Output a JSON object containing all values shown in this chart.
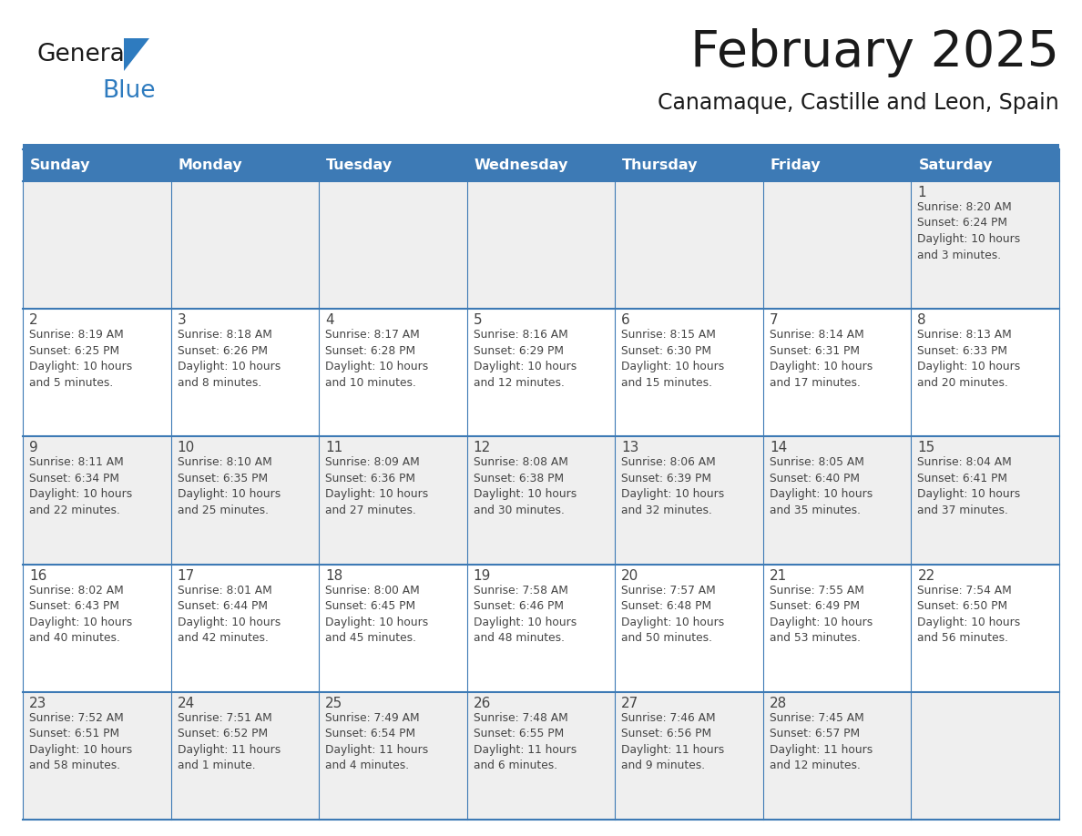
{
  "title": "February 2025",
  "subtitle": "Canamaque, Castille and Leon, Spain",
  "header_bg_color": "#3d7ab5",
  "header_text_color": "#ffffff",
  "cell_bg_color_odd": "#efefef",
  "cell_bg_color_even": "#ffffff",
  "separator_color": "#3d7ab5",
  "day_headers": [
    "Sunday",
    "Monday",
    "Tuesday",
    "Wednesday",
    "Thursday",
    "Friday",
    "Saturday"
  ],
  "days": [
    {
      "day": 1,
      "col": 6,
      "row": 0,
      "sunrise": "8:20 AM",
      "sunset": "6:24 PM",
      "daylight": "10 hours and 3 minutes."
    },
    {
      "day": 2,
      "col": 0,
      "row": 1,
      "sunrise": "8:19 AM",
      "sunset": "6:25 PM",
      "daylight": "10 hours and 5 minutes."
    },
    {
      "day": 3,
      "col": 1,
      "row": 1,
      "sunrise": "8:18 AM",
      "sunset": "6:26 PM",
      "daylight": "10 hours and 8 minutes."
    },
    {
      "day": 4,
      "col": 2,
      "row": 1,
      "sunrise": "8:17 AM",
      "sunset": "6:28 PM",
      "daylight": "10 hours and 10 minutes."
    },
    {
      "day": 5,
      "col": 3,
      "row": 1,
      "sunrise": "8:16 AM",
      "sunset": "6:29 PM",
      "daylight": "10 hours and 12 minutes."
    },
    {
      "day": 6,
      "col": 4,
      "row": 1,
      "sunrise": "8:15 AM",
      "sunset": "6:30 PM",
      "daylight": "10 hours and 15 minutes."
    },
    {
      "day": 7,
      "col": 5,
      "row": 1,
      "sunrise": "8:14 AM",
      "sunset": "6:31 PM",
      "daylight": "10 hours and 17 minutes."
    },
    {
      "day": 8,
      "col": 6,
      "row": 1,
      "sunrise": "8:13 AM",
      "sunset": "6:33 PM",
      "daylight": "10 hours and 20 minutes."
    },
    {
      "day": 9,
      "col": 0,
      "row": 2,
      "sunrise": "8:11 AM",
      "sunset": "6:34 PM",
      "daylight": "10 hours and 22 minutes."
    },
    {
      "day": 10,
      "col": 1,
      "row": 2,
      "sunrise": "8:10 AM",
      "sunset": "6:35 PM",
      "daylight": "10 hours and 25 minutes."
    },
    {
      "day": 11,
      "col": 2,
      "row": 2,
      "sunrise": "8:09 AM",
      "sunset": "6:36 PM",
      "daylight": "10 hours and 27 minutes."
    },
    {
      "day": 12,
      "col": 3,
      "row": 2,
      "sunrise": "8:08 AM",
      "sunset": "6:38 PM",
      "daylight": "10 hours and 30 minutes."
    },
    {
      "day": 13,
      "col": 4,
      "row": 2,
      "sunrise": "8:06 AM",
      "sunset": "6:39 PM",
      "daylight": "10 hours and 32 minutes."
    },
    {
      "day": 14,
      "col": 5,
      "row": 2,
      "sunrise": "8:05 AM",
      "sunset": "6:40 PM",
      "daylight": "10 hours and 35 minutes."
    },
    {
      "day": 15,
      "col": 6,
      "row": 2,
      "sunrise": "8:04 AM",
      "sunset": "6:41 PM",
      "daylight": "10 hours and 37 minutes."
    },
    {
      "day": 16,
      "col": 0,
      "row": 3,
      "sunrise": "8:02 AM",
      "sunset": "6:43 PM",
      "daylight": "10 hours and 40 minutes."
    },
    {
      "day": 17,
      "col": 1,
      "row": 3,
      "sunrise": "8:01 AM",
      "sunset": "6:44 PM",
      "daylight": "10 hours and 42 minutes."
    },
    {
      "day": 18,
      "col": 2,
      "row": 3,
      "sunrise": "8:00 AM",
      "sunset": "6:45 PM",
      "daylight": "10 hours and 45 minutes."
    },
    {
      "day": 19,
      "col": 3,
      "row": 3,
      "sunrise": "7:58 AM",
      "sunset": "6:46 PM",
      "daylight": "10 hours and 48 minutes."
    },
    {
      "day": 20,
      "col": 4,
      "row": 3,
      "sunrise": "7:57 AM",
      "sunset": "6:48 PM",
      "daylight": "10 hours and 50 minutes."
    },
    {
      "day": 21,
      "col": 5,
      "row": 3,
      "sunrise": "7:55 AM",
      "sunset": "6:49 PM",
      "daylight": "10 hours and 53 minutes."
    },
    {
      "day": 22,
      "col": 6,
      "row": 3,
      "sunrise": "7:54 AM",
      "sunset": "6:50 PM",
      "daylight": "10 hours and 56 minutes."
    },
    {
      "day": 23,
      "col": 0,
      "row": 4,
      "sunrise": "7:52 AM",
      "sunset": "6:51 PM",
      "daylight": "10 hours and 58 minutes."
    },
    {
      "day": 24,
      "col": 1,
      "row": 4,
      "sunrise": "7:51 AM",
      "sunset": "6:52 PM",
      "daylight": "11 hours and 1 minute."
    },
    {
      "day": 25,
      "col": 2,
      "row": 4,
      "sunrise": "7:49 AM",
      "sunset": "6:54 PM",
      "daylight": "11 hours and 4 minutes."
    },
    {
      "day": 26,
      "col": 3,
      "row": 4,
      "sunrise": "7:48 AM",
      "sunset": "6:55 PM",
      "daylight": "11 hours and 6 minutes."
    },
    {
      "day": 27,
      "col": 4,
      "row": 4,
      "sunrise": "7:46 AM",
      "sunset": "6:56 PM",
      "daylight": "11 hours and 9 minutes."
    },
    {
      "day": 28,
      "col": 5,
      "row": 4,
      "sunrise": "7:45 AM",
      "sunset": "6:57 PM",
      "daylight": "11 hours and 12 minutes."
    }
  ],
  "num_rows": 5,
  "num_cols": 7,
  "logo_color_general": "#1a1a1a",
  "logo_color_blue": "#2e7bbf",
  "title_color": "#1a1a1a",
  "subtitle_color": "#1a1a1a",
  "text_color": "#444444"
}
